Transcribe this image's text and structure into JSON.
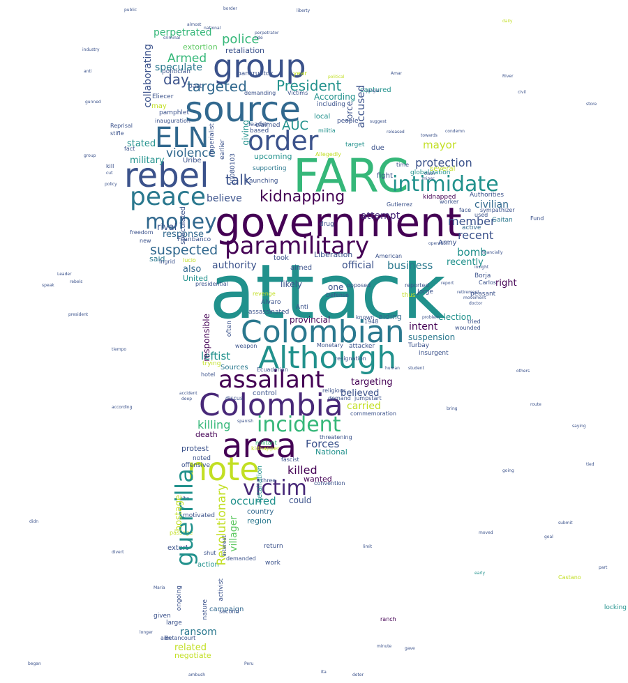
{
  "palette": {
    "c0": "#440154",
    "c1": "#3b528b",
    "c2": "#21918c",
    "c3": "#2a788e",
    "c4": "#35b779",
    "c5": "#5ec962",
    "c6": "#c2df23",
    "c7": "#fde725",
    "c8": "#31688e",
    "c9": "#482878"
  },
  "words": [
    {
      "text": "attack"
    },
    {
      "text": "government"
    },
    {
      "text": "FARC"
    },
    {
      "text": "source"
    },
    {
      "text": "rebel"
    },
    {
      "text": "group"
    },
    {
      "text": "Colombia"
    },
    {
      "text": "area"
    },
    {
      "text": "note"
    },
    {
      "text": "Colombian"
    },
    {
      "text": "Although"
    },
    {
      "text": "assailant"
    },
    {
      "text": "paramilitary"
    },
    {
      "text": "ELN"
    },
    {
      "text": "order"
    },
    {
      "text": "intimidate"
    },
    {
      "text": "peace"
    },
    {
      "text": "money"
    },
    {
      "text": "guerrilla"
    },
    {
      "text": "incident"
    },
    {
      "text": "victim"
    },
    {
      "text": "kidnapping"
    },
    {
      "text": "President"
    },
    {
      "text": "talk"
    },
    {
      "text": "targeted"
    },
    {
      "text": "police"
    },
    {
      "text": "day"
    },
    {
      "text": "Armed"
    },
    {
      "text": "perpetrated"
    },
    {
      "text": "speculate"
    },
    {
      "text": "extortion"
    },
    {
      "text": "retaliation"
    },
    {
      "text": "suspected"
    },
    {
      "text": "violence"
    },
    {
      "text": "military"
    },
    {
      "text": "stated"
    },
    {
      "text": "AUC"
    },
    {
      "text": "accused"
    },
    {
      "text": "According"
    },
    {
      "text": "protection"
    },
    {
      "text": "mayor"
    },
    {
      "text": "civilian"
    },
    {
      "text": "member"
    },
    {
      "text": "recent"
    },
    {
      "text": "bomb"
    },
    {
      "text": "recently"
    },
    {
      "text": "business"
    },
    {
      "text": "authority"
    },
    {
      "text": "official"
    },
    {
      "text": "Liberation"
    },
    {
      "text": "attempt"
    },
    {
      "text": "believe"
    },
    {
      "text": "response"
    },
    {
      "text": "rival"
    },
    {
      "text": "said"
    },
    {
      "text": "also"
    },
    {
      "text": "United"
    },
    {
      "text": "intent"
    },
    {
      "text": "suspension"
    },
    {
      "text": "election"
    },
    {
      "text": "leftist"
    },
    {
      "text": "killing"
    },
    {
      "text": "Forces"
    },
    {
      "text": "killed"
    },
    {
      "text": "National"
    },
    {
      "text": "Revolutionary"
    },
    {
      "text": "occurred"
    },
    {
      "text": "carried"
    },
    {
      "text": "believed"
    },
    {
      "text": "targeting"
    },
    {
      "text": "related"
    },
    {
      "text": "ransom"
    },
    {
      "text": "negotiate"
    },
    {
      "text": "hostage"
    },
    {
      "text": "villager"
    },
    {
      "text": "responsible"
    },
    {
      "text": "provincial"
    },
    {
      "text": "aiding"
    },
    {
      "text": "likely"
    },
    {
      "text": "right"
    },
    {
      "text": "one"
    },
    {
      "text": "could"
    },
    {
      "text": "wanted"
    },
    {
      "text": "death"
    },
    {
      "text": "protest"
    },
    {
      "text": "noted"
    },
    {
      "text": "offensive"
    },
    {
      "text": "region"
    },
    {
      "text": "country"
    },
    {
      "text": "campaign"
    },
    {
      "text": "ongoing"
    },
    {
      "text": "work"
    },
    {
      "text": "action"
    },
    {
      "text": "extort"
    },
    {
      "text": "given"
    },
    {
      "text": "large"
    },
    {
      "text": "return"
    },
    {
      "text": "demanded"
    },
    {
      "text": "upcoming"
    },
    {
      "text": "supporting"
    },
    {
      "text": "Launching"
    },
    {
      "text": "globalization"
    },
    {
      "text": "fight"
    },
    {
      "text": "several"
    },
    {
      "text": "kidnapped"
    },
    {
      "text": "Authorities"
    },
    {
      "text": "sympathizer"
    },
    {
      "text": "Gaitan"
    },
    {
      "text": "Army"
    },
    {
      "text": "active"
    },
    {
      "text": "drug"
    },
    {
      "text": "Jorge"
    },
    {
      "text": "peasant"
    },
    {
      "text": "Carlos"
    },
    {
      "text": "Borja"
    },
    {
      "text": "Turbay"
    },
    {
      "text": "insurgent"
    },
    {
      "text": "attacker"
    },
    {
      "text": "Monetary"
    },
    {
      "text": "weapon"
    },
    {
      "text": "Alvaro"
    },
    {
      "text": "Anti"
    },
    {
      "text": "assassinated"
    },
    {
      "text": "often"
    },
    {
      "text": "Sources"
    },
    {
      "text": "Ecuadorian"
    },
    {
      "text": "control"
    },
    {
      "text": "trying"
    },
    {
      "text": "Filanbanco"
    },
    {
      "text": "Ingrid"
    },
    {
      "text": "presidential"
    },
    {
      "text": "Uribe"
    },
    {
      "text": "kill"
    },
    {
      "text": "Reprisal"
    },
    {
      "text": "stifle"
    },
    {
      "text": "fact"
    },
    {
      "text": "pamphlet"
    },
    {
      "text": "inauguration"
    },
    {
      "text": "Eliecer"
    },
    {
      "text": "politician"
    },
    {
      "text": "may"
    },
    {
      "text": "past"
    },
    {
      "text": "leader"
    },
    {
      "text": "claimed"
    },
    {
      "text": "based"
    },
    {
      "text": "local"
    },
    {
      "text": "including"
    },
    {
      "text": "militia"
    },
    {
      "text": "people"
    },
    {
      "text": "target"
    },
    {
      "text": "due"
    },
    {
      "text": "Allegedly"
    },
    {
      "text": "bankruptcy"
    },
    {
      "text": "year"
    },
    {
      "text": "Victims"
    },
    {
      "text": "demanding"
    },
    {
      "text": "collaborating"
    },
    {
      "text": "giving"
    },
    {
      "text": "speculated"
    },
    {
      "text": "imperialist"
    },
    {
      "text": "earlier"
    },
    {
      "text": "20080103"
    },
    {
      "text": "captured"
    },
    {
      "text": "force"
    },
    {
      "text": "time"
    },
    {
      "text": "Gutierrez"
    },
    {
      "text": "American"
    },
    {
      "text": "aimed"
    },
    {
      "text": "took"
    },
    {
      "text": "known"
    },
    {
      "text": "Defense"
    },
    {
      "text": "opposed"
    },
    {
      "text": "reported"
    },
    {
      "text": "tried"
    },
    {
      "text": "wounded"
    },
    {
      "text": "thus"
    },
    {
      "text": "1948"
    },
    {
      "text": "resignation"
    },
    {
      "text": "threatening"
    },
    {
      "text": "commemoration"
    },
    {
      "text": "demand"
    },
    {
      "text": "religious"
    },
    {
      "text": "jumpstart"
    },
    {
      "text": "fascist"
    },
    {
      "text": "convention"
    },
    {
      "text": "three"
    },
    {
      "text": "discus"
    },
    {
      "text": "hotel"
    },
    {
      "text": "passage"
    },
    {
      "text": "motivated"
    },
    {
      "text": "shut"
    },
    {
      "text": "rite"
    },
    {
      "text": "nature"
    },
    {
      "text": "second"
    },
    {
      "text": "aim"
    },
    {
      "text": "Betancourt"
    },
    {
      "text": "activist"
    },
    {
      "text": "interest"
    },
    {
      "text": "Retaliation"
    },
    {
      "text": "militant"
    },
    {
      "text": "kidnapper"
    },
    {
      "text": "freedom"
    },
    {
      "text": "new"
    },
    {
      "text": "lucio"
    },
    {
      "text": "revenge"
    },
    {
      "text": "locking"
    },
    {
      "text": "Castano"
    },
    {
      "text": "Fund"
    },
    {
      "text": "used"
    },
    {
      "text": "face"
    },
    {
      "text": "worker"
    },
    {
      "text": "ranch"
    },
    {
      "text": "industry"
    },
    {
      "text": "anti"
    },
    {
      "text": "gunned"
    },
    {
      "text": "group"
    },
    {
      "text": "cut"
    },
    {
      "text": "policy"
    },
    {
      "text": "according"
    },
    {
      "text": "president"
    },
    {
      "text": "Leader"
    },
    {
      "text": "speak"
    },
    {
      "text": "rebels"
    },
    {
      "text": "tiempo"
    },
    {
      "text": "didn"
    },
    {
      "text": "divert"
    },
    {
      "text": "Maria"
    },
    {
      "text": "longer"
    },
    {
      "text": "began"
    },
    {
      "text": "ambush"
    },
    {
      "text": "deter"
    },
    {
      "text": "Ita"
    },
    {
      "text": "Peru"
    },
    {
      "text": "minute"
    },
    {
      "text": "gave"
    },
    {
      "text": "limit"
    },
    {
      "text": "goal"
    },
    {
      "text": "submit"
    },
    {
      "text": "moved"
    },
    {
      "text": "early"
    },
    {
      "text": "part"
    },
    {
      "text": "bring"
    },
    {
      "text": "others"
    },
    {
      "text": "route"
    },
    {
      "text": "saying"
    },
    {
      "text": "tied"
    },
    {
      "text": "going"
    },
    {
      "text": "store"
    },
    {
      "text": "civil"
    },
    {
      "text": "River"
    },
    {
      "text": "daily"
    },
    {
      "text": "border"
    },
    {
      "text": "public"
    },
    {
      "text": "liberty"
    },
    {
      "text": "almost"
    },
    {
      "text": "ride"
    },
    {
      "text": "criminal"
    },
    {
      "text": "national"
    },
    {
      "text": "perpetrator"
    },
    {
      "text": "Amar"
    },
    {
      "text": "political"
    },
    {
      "text": "jungle"
    },
    {
      "text": "suggest"
    },
    {
      "text": "released"
    },
    {
      "text": "towards"
    },
    {
      "text": "condemn"
    },
    {
      "text": "clash"
    },
    {
      "text": "miner"
    },
    {
      "text": "retirement"
    },
    {
      "text": "movement"
    },
    {
      "text": "doctor"
    },
    {
      "text": "financially"
    },
    {
      "text": "insight"
    },
    {
      "text": "operation"
    },
    {
      "text": "report"
    },
    {
      "text": "problem"
    },
    {
      "text": "human"
    },
    {
      "text": "student"
    },
    {
      "text": "accident"
    },
    {
      "text": "deep"
    },
    {
      "text": "spanish"
    },
    {
      "text": "Alien"
    },
    {
      "text": "Armada"
    }
  ]
}
